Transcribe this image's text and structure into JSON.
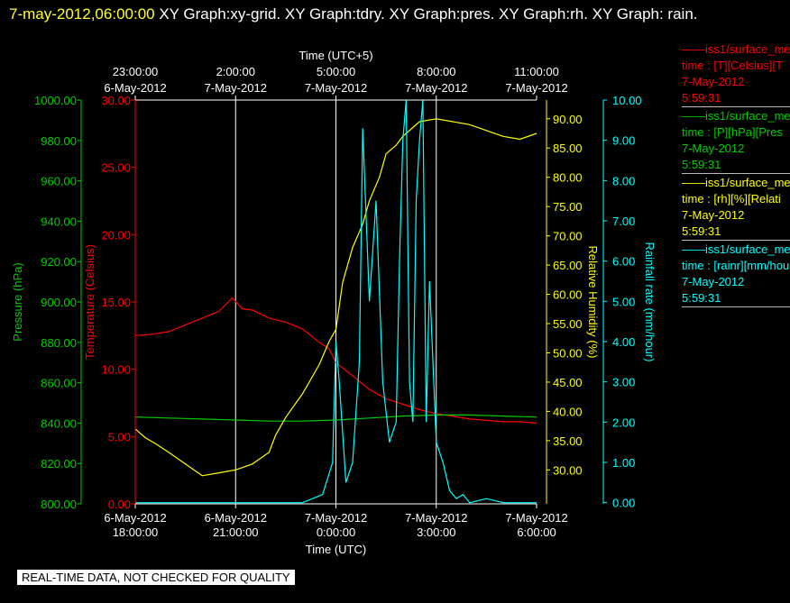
{
  "header": {
    "timestamp": "7-may-2012,06:00:00",
    "graphs": "  XY Graph:xy-grid.  XY Graph:tdry.  XY Graph:pres.  XY Graph:rh.  XY Graph: rain."
  },
  "footer": {
    "warning": "REAL-TIME DATA, NOT CHECKED FOR QUALITY"
  },
  "colors": {
    "temperature": "#ff0000",
    "pressure": "#00cc00",
    "humidity": "#ffff00",
    "rainfall": "#00ffff",
    "grid": "#ffffff"
  },
  "legend": [
    {
      "name": "——iss1/surface_me",
      "units": "time : [T][Celsius][T",
      "date": "7-May-2012",
      "time": "5:59:31",
      "color": "#ff0000"
    },
    {
      "name": "——iss1/surface_me",
      "units": "time : [P][hPa][Pres",
      "date": "7-May-2012",
      "time": "5:59:31",
      "color": "#00cc00"
    },
    {
      "name": "——iss1/surface_me",
      "units": "time : [rh][%][Relati",
      "date": "7-May-2012",
      "time": "5:59:31",
      "color": "#ffff00"
    },
    {
      "name": "——iss1/surface_me",
      "units": "time : [rainr][mm/hou",
      "date": "7-May-2012",
      "time": "5:59:31",
      "color": "#00ffff"
    }
  ],
  "chart_data": {
    "type": "line",
    "xlabel_bottom": "Time (UTC)",
    "xlabel_top": "Time (UTC+5)",
    "x_range_utc_hours": [
      18,
      30
    ],
    "x_ticks_bottom": [
      {
        "date": "6-May-2012",
        "time": "18:00:00"
      },
      {
        "date": "6-May-2012",
        "time": "21:00:00"
      },
      {
        "date": "7-May-2012",
        "time": "0:00:00"
      },
      {
        "date": "7-May-2012",
        "time": "3:00:00"
      },
      {
        "date": "7-May-2012",
        "time": "6:00:00"
      }
    ],
    "x_ticks_top": [
      {
        "time": "23:00:00",
        "date": "6-May-2012"
      },
      {
        "time": "2:00:00",
        "date": "7-May-2012"
      },
      {
        "time": "5:00:00",
        "date": "7-May-2012"
      },
      {
        "time": "8:00:00",
        "date": "7-May-2012"
      },
      {
        "time": "11:00:00",
        "date": "7-May-2012"
      }
    ],
    "grid": true,
    "axes": {
      "pressure": {
        "label": "Pressure (hPa)",
        "range": [
          800,
          1000
        ],
        "ticks": [
          "800.00",
          "820.00",
          "840.00",
          "860.00",
          "880.00",
          "900.00",
          "920.00",
          "940.00",
          "960.00",
          "980.00",
          "1000.00"
        ]
      },
      "temperature": {
        "label": "Temperature (Celsius)",
        "range": [
          0,
          30
        ],
        "ticks": [
          "0.00",
          "5.00",
          "10.00",
          "15.00",
          "20.00",
          "25.00",
          "30.00"
        ]
      },
      "humidity": {
        "label": "Relative Humidity (%)",
        "range": [
          24.2,
          93.2
        ],
        "ticks": [
          "30.00",
          "35.00",
          "40.00",
          "45.00",
          "50.00",
          "55.00",
          "60.00",
          "65.00",
          "70.00",
          "75.00",
          "80.00",
          "85.00",
          "90.00"
        ]
      },
      "rainfall": {
        "label": "Rainfall rate (mm/hour)",
        "range": [
          -0.03,
          10.0
        ],
        "ticks": [
          "0.00",
          "1.00",
          "2.00",
          "3.00",
          "4.00",
          "5.00",
          "6.00",
          "7.00",
          "8.00",
          "9.00",
          "10.00"
        ]
      }
    },
    "series": [
      {
        "name": "Temperature",
        "axis": "temperature",
        "x": [
          18.0,
          18.5,
          19.0,
          19.5,
          20.0,
          20.5,
          20.9,
          21.2,
          21.5,
          22.0,
          22.5,
          23.0,
          23.5,
          23.8,
          24.0,
          24.5,
          25.0,
          25.5,
          26.0,
          26.5,
          27.0,
          27.5,
          28.0,
          28.5,
          29.0,
          29.5,
          30.0
        ],
        "values": [
          12.5,
          12.6,
          12.8,
          13.3,
          13.8,
          14.3,
          15.3,
          14.5,
          14.4,
          13.8,
          13.5,
          13.0,
          12.0,
          11.5,
          10.5,
          9.5,
          8.5,
          7.8,
          7.4,
          7.0,
          6.7,
          6.5,
          6.3,
          6.2,
          6.1,
          6.1,
          6.0
        ]
      },
      {
        "name": "Pressure",
        "axis": "pressure",
        "x": [
          18.0,
          19.0,
          20.0,
          21.0,
          22.0,
          23.0,
          24.0,
          25.0,
          26.0,
          27.0,
          28.0,
          29.0,
          30.0
        ],
        "values": [
          843.0,
          842.5,
          842.0,
          841.5,
          841.0,
          841.0,
          841.5,
          842.5,
          843.5,
          844.0,
          844.0,
          843.5,
          843.0
        ]
      },
      {
        "name": "Relative Humidity",
        "axis": "humidity",
        "x": [
          18.0,
          18.3,
          18.6,
          19.0,
          19.5,
          20.0,
          20.5,
          21.0,
          21.5,
          22.0,
          22.2,
          22.5,
          23.0,
          23.5,
          23.8,
          24.0,
          24.2,
          24.5,
          24.8,
          25.0,
          25.3,
          25.5,
          25.8,
          26.0,
          26.3,
          26.5,
          27.0,
          27.5,
          28.0,
          28.5,
          29.0,
          29.5,
          30.0
        ],
        "values": [
          37.0,
          35.5,
          34.5,
          33.0,
          31.0,
          29.0,
          29.5,
          30.0,
          31.0,
          33.0,
          36.0,
          39.0,
          43.0,
          48.0,
          52.0,
          54.0,
          62.0,
          68.0,
          72.0,
          76.0,
          80.0,
          84.0,
          85.5,
          87.0,
          88.5,
          89.5,
          90.0,
          89.5,
          89.0,
          88.0,
          87.0,
          86.5,
          87.5
        ]
      },
      {
        "name": "Rainfall rate",
        "axis": "rainfall",
        "x": [
          18.0,
          23.0,
          23.3,
          23.6,
          23.9,
          24.0,
          24.1,
          24.3,
          24.5,
          24.7,
          24.8,
          25.0,
          25.2,
          25.4,
          25.6,
          25.8,
          25.9,
          26.0,
          26.1,
          26.2,
          26.3,
          26.4,
          26.5,
          26.6,
          26.7,
          26.8,
          27.0,
          27.2,
          27.4,
          27.6,
          27.8,
          28.0,
          28.5,
          29.0,
          30.0
        ],
        "values": [
          0.0,
          0.0,
          0.1,
          0.2,
          1.0,
          4.0,
          3.0,
          0.5,
          1.0,
          3.5,
          9.3,
          5.0,
          7.5,
          3.0,
          1.5,
          2.0,
          6.0,
          9.0,
          10.0,
          3.0,
          2.0,
          7.5,
          9.0,
          10.0,
          2.0,
          5.5,
          1.5,
          1.0,
          0.3,
          0.1,
          0.2,
          0.0,
          0.1,
          0.0,
          0.0
        ]
      }
    ]
  }
}
